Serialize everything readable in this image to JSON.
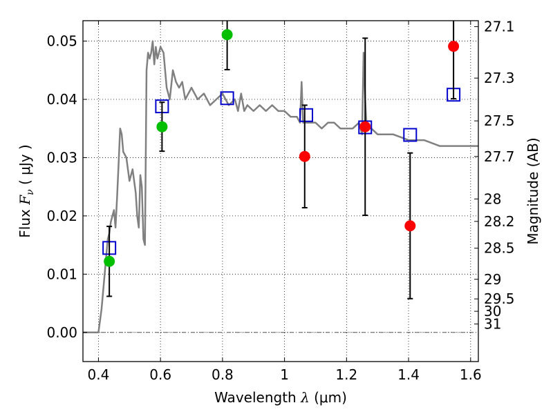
{
  "chart_data": {
    "type": "scatter",
    "title": "",
    "xlabel": "Wavelength",
    "xlabel_symbol": "λ",
    "xlabel_unit": "(μm)",
    "ylabel": "Flux",
    "ylabel_symbol": "F",
    "ylabel_subscript": "ν",
    "ylabel_unit": "( μJy )",
    "y2label": "Magnitude (AB)",
    "xlim": [
      0.35,
      1.625
    ],
    "ylim": [
      -0.005,
      0.0535
    ],
    "grid": true,
    "x_ticks": [
      0.4,
      0.6,
      0.8,
      1.0,
      1.2,
      1.4,
      1.6
    ],
    "x_tick_labels": [
      "0.4",
      "0.6",
      "0.8",
      "1",
      "1.2",
      "1.4",
      "1.6"
    ],
    "y_ticks": [
      0.0,
      0.01,
      0.02,
      0.03,
      0.04,
      0.05
    ],
    "y_tick_labels": [
      "0.00",
      "0.01",
      "0.02",
      "0.03",
      "0.04",
      "0.05"
    ],
    "y2_ticks": [
      {
        "label": "27.1",
        "value": 27.1
      },
      {
        "label": "27.3",
        "value": 27.3
      },
      {
        "label": "27.5",
        "value": 27.5
      },
      {
        "label": "27.7",
        "value": 27.7
      },
      {
        "label": "28",
        "value": 28.0
      },
      {
        "label": "28.2",
        "value": 28.2
      },
      {
        "label": "28.5",
        "value": 28.5
      },
      {
        "label": "29",
        "value": 29.0
      },
      {
        "label": "29.5",
        "value": 29.5
      },
      {
        "label": "30",
        "value": 30.0
      },
      {
        "label": "31",
        "value": 31.0
      }
    ],
    "colors": {
      "model": "#808080",
      "green": "#00bf00",
      "red": "#ff0000",
      "box": "#0000cc",
      "errorbar": "#000000"
    },
    "series": [
      {
        "kind": "line",
        "x": [
          0.35,
          0.4,
          0.41,
          0.42,
          0.425,
          0.43,
          0.435,
          0.44,
          0.445,
          0.45,
          0.455,
          0.46,
          0.465,
          0.47,
          0.475,
          0.48,
          0.49,
          0.5,
          0.51,
          0.52,
          0.525,
          0.53,
          0.535,
          0.54,
          0.545,
          0.55,
          0.555,
          0.56,
          0.565,
          0.57,
          0.575,
          0.58,
          0.585,
          0.59,
          0.6,
          0.61,
          0.62,
          0.63,
          0.64,
          0.65,
          0.66,
          0.67,
          0.68,
          0.7,
          0.72,
          0.74,
          0.76,
          0.78,
          0.8,
          0.82,
          0.84,
          0.85,
          0.86,
          0.87,
          0.88,
          0.9,
          0.92,
          0.94,
          0.96,
          0.98,
          1.0,
          1.02,
          1.04,
          1.05,
          1.055,
          1.06,
          1.08,
          1.1,
          1.12,
          1.14,
          1.16,
          1.18,
          1.2,
          1.22,
          1.24,
          1.25,
          1.255,
          1.26,
          1.265,
          1.27,
          1.28,
          1.3,
          1.35,
          1.4,
          1.45,
          1.5,
          1.55,
          1.58,
          1.6,
          1.625
        ],
        "y": [
          0.0,
          0.0,
          0.004,
          0.01,
          0.013,
          0.016,
          0.017,
          0.019,
          0.02,
          0.021,
          0.018,
          0.023,
          0.029,
          0.035,
          0.034,
          0.031,
          0.03,
          0.026,
          0.028,
          0.024,
          0.02,
          0.018,
          0.027,
          0.025,
          0.016,
          0.015,
          0.045,
          0.048,
          0.047,
          0.048,
          0.05,
          0.046,
          0.049,
          0.047,
          0.049,
          0.048,
          0.042,
          0.04,
          0.045,
          0.043,
          0.042,
          0.043,
          0.04,
          0.042,
          0.04,
          0.041,
          0.039,
          0.04,
          0.041,
          0.039,
          0.04,
          0.038,
          0.041,
          0.038,
          0.039,
          0.038,
          0.039,
          0.038,
          0.039,
          0.038,
          0.038,
          0.037,
          0.037,
          0.036,
          0.043,
          0.036,
          0.036,
          0.036,
          0.035,
          0.036,
          0.036,
          0.035,
          0.035,
          0.035,
          0.036,
          0.034,
          0.048,
          0.04,
          0.035,
          0.035,
          0.035,
          0.034,
          0.034,
          0.033,
          0.033,
          0.032,
          0.032,
          0.032,
          0.032,
          0.032
        ]
      },
      {
        "kind": "boxes",
        "x": [
          0.435,
          0.605,
          0.815,
          1.07,
          1.26,
          1.405,
          1.545
        ],
        "y": [
          0.0145,
          0.0388,
          0.0402,
          0.0373,
          0.0352,
          0.0339,
          0.0408
        ]
      },
      {
        "kind": "green-points",
        "x": [
          0.435,
          0.605,
          0.815
        ],
        "y": [
          0.0122,
          0.0353,
          0.0511
        ],
        "err": [
          0.006,
          0.0042,
          0.006
        ]
      },
      {
        "kind": "red-points",
        "x": [
          1.065,
          1.26,
          1.405,
          1.545
        ],
        "y": [
          0.0302,
          0.0353,
          0.0183,
          0.0491
        ],
        "err": [
          0.0088,
          0.0152,
          0.0125,
          0.009
        ]
      }
    ]
  }
}
